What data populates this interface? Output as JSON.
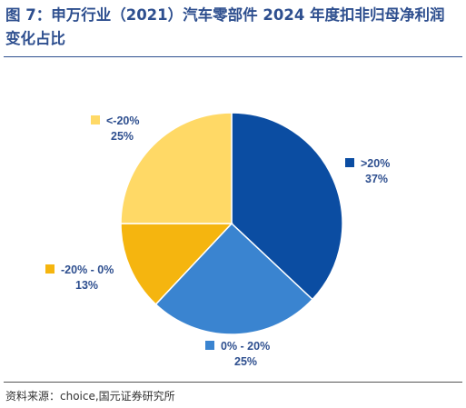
{
  "header": {
    "title": "图 7：申万行业（2021）汽车零部件 2024 年度扣非归母净利润变化占比"
  },
  "chart_data": {
    "type": "pie",
    "slices": [
      {
        "label": ">20%",
        "value": 37,
        "value_label": "37%",
        "color": "#0B4DA2"
      },
      {
        "label": "0% - 20%",
        "value": 25,
        "value_label": "25%",
        "color": "#3A84D0"
      },
      {
        "label": "-20% - 0%",
        "value": 13,
        "value_label": "13%",
        "color": "#F5B50F"
      },
      {
        "label": "<-20%",
        "value": 25,
        "value_label": "25%",
        "color": "#FFD966"
      }
    ],
    "start_angle_deg": 0,
    "direction": "clockwise"
  },
  "footer": {
    "source": "资料来源：choice,国元证券研究所"
  }
}
